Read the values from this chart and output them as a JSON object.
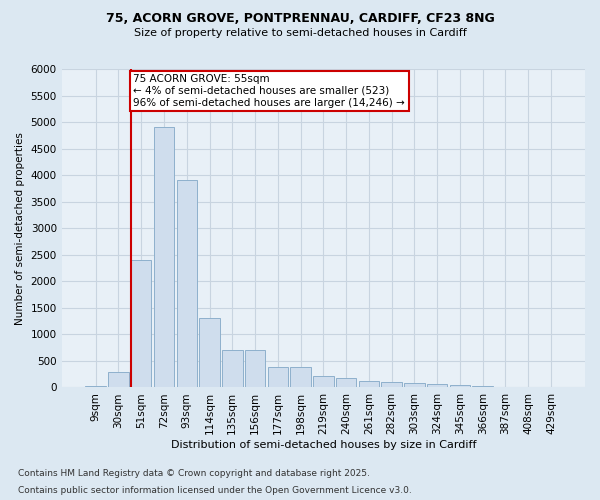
{
  "title1": "75, ACORN GROVE, PONTPRENNAU, CARDIFF, CF23 8NG",
  "title2": "Size of property relative to semi-detached houses in Cardiff",
  "xlabel": "Distribution of semi-detached houses by size in Cardiff",
  "ylabel": "Number of semi-detached properties",
  "categories": [
    "9sqm",
    "30sqm",
    "51sqm",
    "72sqm",
    "93sqm",
    "114sqm",
    "135sqm",
    "156sqm",
    "177sqm",
    "198sqm",
    "219sqm",
    "240sqm",
    "261sqm",
    "282sqm",
    "303sqm",
    "324sqm",
    "345sqm",
    "366sqm",
    "387sqm",
    "408sqm",
    "429sqm"
  ],
  "values": [
    20,
    290,
    2400,
    4900,
    3900,
    1300,
    700,
    700,
    380,
    380,
    210,
    175,
    130,
    110,
    80,
    60,
    40,
    25,
    15,
    8,
    5
  ],
  "bar_color": "#cfdded",
  "bar_edge_color": "#8eb0cc",
  "vline_bin_index": 2,
  "vline_color": "#cc0000",
  "annotation_text": "75 ACORN GROVE: 55sqm\n← 4% of semi-detached houses are smaller (523)\n96% of semi-detached houses are larger (14,246) →",
  "annotation_box_facecolor": "#ffffff",
  "annotation_box_edgecolor": "#cc0000",
  "footnote1": "Contains HM Land Registry data © Crown copyright and database right 2025.",
  "footnote2": "Contains public sector information licensed under the Open Government Licence v3.0.",
  "fig_bg_color": "#dce8f2",
  "plot_bg_color": "#e8f0f7",
  "grid_color": "#c8d4e0",
  "ylim_max": 6000,
  "ytick_step": 500,
  "title1_fontsize": 9,
  "title2_fontsize": 8,
  "xlabel_fontsize": 8,
  "ylabel_fontsize": 7.5,
  "tick_fontsize": 7.5,
  "annot_fontsize": 7.5,
  "footnote_fontsize": 6.5
}
